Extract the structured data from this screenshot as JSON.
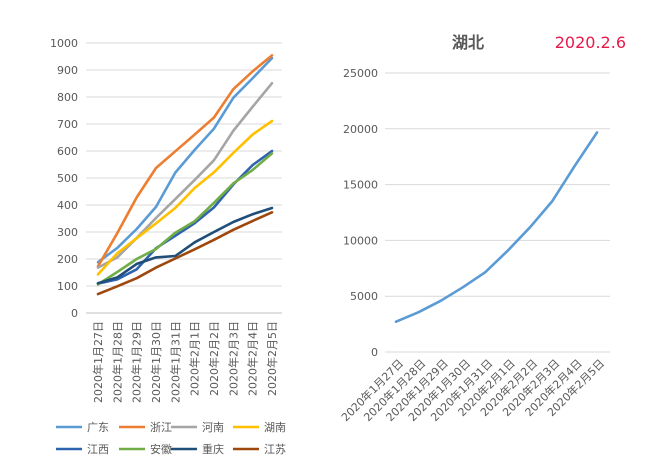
{
  "chart_data": [
    {
      "type": "line",
      "title": "",
      "xlabel": "",
      "ylabel": "",
      "ylim": [
        0,
        1000
      ],
      "yticks": [
        "0",
        "100",
        "200",
        "300",
        "400",
        "500",
        "600",
        "700",
        "800",
        "900",
        "1000"
      ],
      "grid": "horizontal",
      "legend_position": "bottom",
      "categories": [
        "2020年1月27日",
        "2020年1月28日",
        "2020年1月29日",
        "2020年1月30日",
        "2020年1月31日",
        "2020年2月1日",
        "2020年2月2日",
        "2020年2月3日",
        "2020年2月4日",
        "2020年2月5日"
      ],
      "series": [
        {
          "name": "广东",
          "color": "#5b9bd5",
          "values": [
            188,
            241,
            311,
            393,
            520,
            604,
            683,
            797,
            870,
            944
          ]
        },
        {
          "name": "浙江",
          "color": "#ed7d31",
          "values": [
            173,
            296,
            428,
            537,
            599,
            661,
            724,
            829,
            895,
            954
          ]
        },
        {
          "name": "河南",
          "color": "#a5a5a5",
          "values": [
            168,
            206,
            278,
            352,
            422,
            493,
            566,
            675,
            764,
            851
          ]
        },
        {
          "name": "湖南",
          "color": "#ffc000",
          "values": [
            143,
            221,
            277,
            332,
            389,
            463,
            521,
            593,
            661,
            711
          ]
        },
        {
          "name": "江西",
          "color": "#2e63b0",
          "values": [
            109,
            125,
            162,
            240,
            286,
            333,
            391,
            476,
            548,
            600
          ]
        },
        {
          "name": "安徽",
          "color": "#70ad47",
          "values": [
            106,
            152,
            200,
            237,
            297,
            340,
            408,
            480,
            530,
            591
          ]
        },
        {
          "name": "重庆",
          "color": "#1f4e79",
          "values": [
            110,
            132,
            182,
            206,
            211,
            262,
            300,
            337,
            366,
            389
          ]
        },
        {
          "name": "江苏",
          "color": "#9e480e",
          "values": [
            70,
            99,
            129,
            168,
            202,
            236,
            271,
            308,
            341,
            373
          ]
        }
      ]
    },
    {
      "type": "line",
      "title": "湖北",
      "annotation": "2020.2.6",
      "annotation_color": "#e8194a",
      "xlabel": "",
      "ylabel": "",
      "ylim": [
        0,
        25000
      ],
      "yticks": [
        "0",
        "5000",
        "10000",
        "15000",
        "20000",
        "25000"
      ],
      "grid": "horizontal",
      "legend_position": "none",
      "categories": [
        "2020年1月27日",
        "2020年1月28日",
        "2020年1月29日",
        "2020年1月30日",
        "2020年1月31日",
        "2020年2月1日",
        "2020年2月2日",
        "2020年2月3日",
        "2020年2月4日",
        "2020年2月5日"
      ],
      "series": [
        {
          "name": "湖北",
          "color": "#5b9bd5",
          "values": [
            2714,
            3554,
            4586,
            5806,
            7153,
            9074,
            11177,
            13522,
            16678,
            19665
          ]
        }
      ]
    }
  ]
}
